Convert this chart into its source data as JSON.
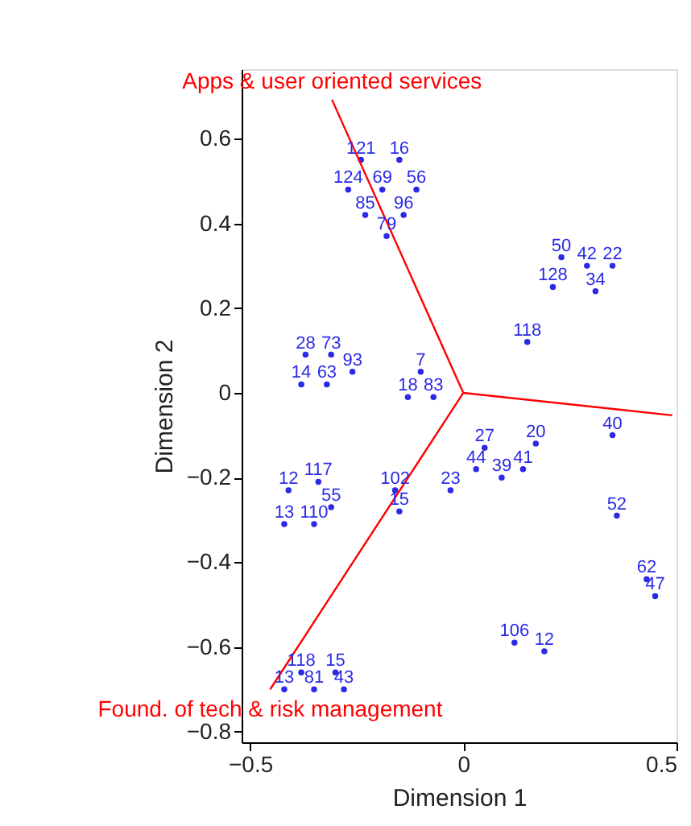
{
  "chart_data": {
    "type": "scatter",
    "xlabel": "Dimension 1",
    "ylabel": "Dimension 2",
    "xlim": [
      -0.52,
      0.5
    ],
    "ylim": [
      -0.825,
      0.764
    ],
    "xticks": [
      -0.5,
      {
        "value": 0,
        "label": "0"
      },
      0.5
    ],
    "yticks": [
      -0.8,
      -0.6,
      -0.4,
      -0.2,
      {
        "value": 0,
        "label": "0"
      },
      0.2,
      0.4,
      0.6
    ],
    "grid": false,
    "series": [
      {
        "color": "#2a2ae6",
        "marker": "circle",
        "x": [
          -0.24,
          -0.15,
          -0.27,
          -0.19,
          -0.11,
          -0.23,
          -0.14,
          -0.18,
          -0.37,
          -0.31,
          -0.26,
          -0.38,
          -0.32,
          -0.1,
          -0.13,
          -0.07,
          -0.41,
          -0.34,
          -0.42,
          -0.35,
          -0.31,
          -0.16,
          -0.15,
          -0.03,
          0.05,
          0.17,
          0.03,
          0.09,
          0.14,
          0.36,
          0.43,
          0.45,
          0.12,
          0.19,
          0.23,
          0.29,
          0.35,
          0.21,
          0.31,
          0.15,
          0.35,
          -0.38,
          -0.3,
          -0.42,
          -0.35,
          -0.28
        ],
        "values": [
          0.55,
          0.55,
          0.48,
          0.48,
          0.48,
          0.42,
          0.42,
          0.37,
          0.09,
          0.09,
          0.05,
          0.02,
          0.02,
          0.05,
          -0.01,
          -0.01,
          -0.23,
          -0.21,
          -0.31,
          -0.31,
          -0.27,
          -0.23,
          -0.28,
          -0.23,
          -0.13,
          -0.12,
          -0.18,
          -0.2,
          -0.18,
          -0.29,
          -0.44,
          -0.48,
          -0.59,
          -0.61,
          0.32,
          0.3,
          0.3,
          0.25,
          0.24,
          0.12,
          -0.1,
          -0.66,
          -0.66,
          -0.7,
          -0.7,
          -0.7
        ]
      },
      {
        "type": "line",
        "color": "#ff0000",
        "x": [
          0,
          -0.308
        ],
        "values": [
          0,
          0.692
        ]
      },
      {
        "type": "line",
        "color": "#ff0000",
        "x": [
          0,
          -0.453
        ],
        "values": [
          0,
          -0.7
        ]
      },
      {
        "type": "line",
        "color": "#ff0000",
        "x": [
          0,
          0.49
        ],
        "values": [
          0,
          -0.053
        ]
      }
    ],
    "annotations": [
      "Apps & user oriented services",
      "Found. of tech & risk management",
      {
        "text": "121",
        "x": -0.24,
        "y": 0.55
      },
      {
        "text": "16",
        "x": -0.15,
        "y": 0.55
      },
      {
        "text": "124",
        "x": -0.27,
        "y": 0.48
      },
      {
        "text": "69",
        "x": -0.19,
        "y": 0.48
      },
      {
        "text": "56",
        "x": -0.11,
        "y": 0.48
      },
      {
        "text": "85",
        "x": -0.23,
        "y": 0.42
      },
      {
        "text": "96",
        "x": -0.14,
        "y": 0.42
      },
      {
        "text": "79",
        "x": -0.18,
        "y": 0.37
      },
      {
        "text": "28",
        "x": -0.37,
        "y": 0.09
      },
      {
        "text": "73",
        "x": -0.31,
        "y": 0.09
      },
      {
        "text": "93",
        "x": -0.26,
        "y": 0.05
      },
      {
        "text": "14",
        "x": -0.38,
        "y": 0.02
      },
      {
        "text": "63",
        "x": -0.32,
        "y": 0.02
      },
      {
        "text": "7",
        "x": -0.1,
        "y": 0.05
      },
      {
        "text": "18",
        "x": -0.13,
        "y": -0.01
      },
      {
        "text": "83",
        "x": -0.07,
        "y": -0.01
      },
      {
        "text": "12",
        "x": -0.41,
        "y": -0.23
      },
      {
        "text": "117",
        "x": -0.34,
        "y": -0.21
      },
      {
        "text": "13",
        "x": -0.42,
        "y": -0.31
      },
      {
        "text": "110",
        "x": -0.35,
        "y": -0.31
      },
      {
        "text": "55",
        "x": -0.31,
        "y": -0.27
      },
      {
        "text": "102",
        "x": -0.16,
        "y": -0.23
      },
      {
        "text": "15",
        "x": -0.15,
        "y": -0.28
      },
      {
        "text": "23",
        "x": -0.03,
        "y": -0.23
      },
      {
        "text": "27",
        "x": 0.05,
        "y": -0.13
      },
      {
        "text": "20",
        "x": 0.17,
        "y": -0.12
      },
      {
        "text": "44",
        "x": 0.03,
        "y": -0.18
      },
      {
        "text": "39",
        "x": 0.09,
        "y": -0.2
      },
      {
        "text": "41",
        "x": 0.14,
        "y": -0.18
      },
      {
        "text": "52",
        "x": 0.36,
        "y": -0.29
      },
      {
        "text": "62",
        "x": 0.43,
        "y": -0.44
      },
      {
        "text": "47",
        "x": 0.45,
        "y": -0.48
      },
      {
        "text": "106",
        "x": 0.12,
        "y": -0.59
      },
      {
        "text": "12",
        "x": 0.19,
        "y": -0.61
      },
      {
        "text": "50",
        "x": 0.23,
        "y": 0.32
      },
      {
        "text": "42",
        "x": 0.29,
        "y": 0.3
      },
      {
        "text": "22",
        "x": 0.35,
        "y": 0.3
      },
      {
        "text": "128",
        "x": 0.21,
        "y": 0.25
      },
      {
        "text": "34",
        "x": 0.31,
        "y": 0.24
      },
      {
        "text": "118",
        "x": 0.15,
        "y": 0.12
      },
      {
        "text": "40",
        "x": 0.35,
        "y": -0.1
      },
      {
        "text": "118",
        "x": -0.38,
        "y": -0.66
      },
      {
        "text": "15",
        "x": -0.3,
        "y": -0.66
      },
      {
        "text": "13",
        "x": -0.42,
        "y": -0.7
      },
      {
        "text": "81",
        "x": -0.35,
        "y": -0.7
      },
      {
        "text": "43",
        "x": -0.28,
        "y": -0.7
      }
    ]
  }
}
